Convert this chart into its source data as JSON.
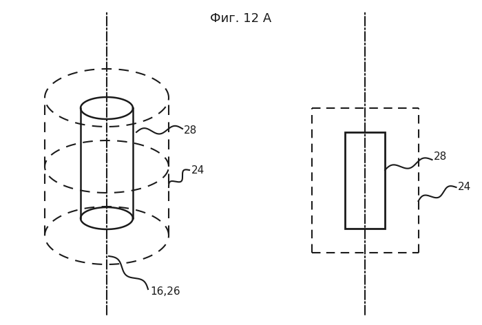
{
  "title": "Фиг. 12 А",
  "label_1626": "16,26",
  "label_24": "24",
  "label_28": "28",
  "bg_color": "#ffffff",
  "line_color": "#1a1a1a",
  "fig_width": 7.0,
  "fig_height": 4.72
}
